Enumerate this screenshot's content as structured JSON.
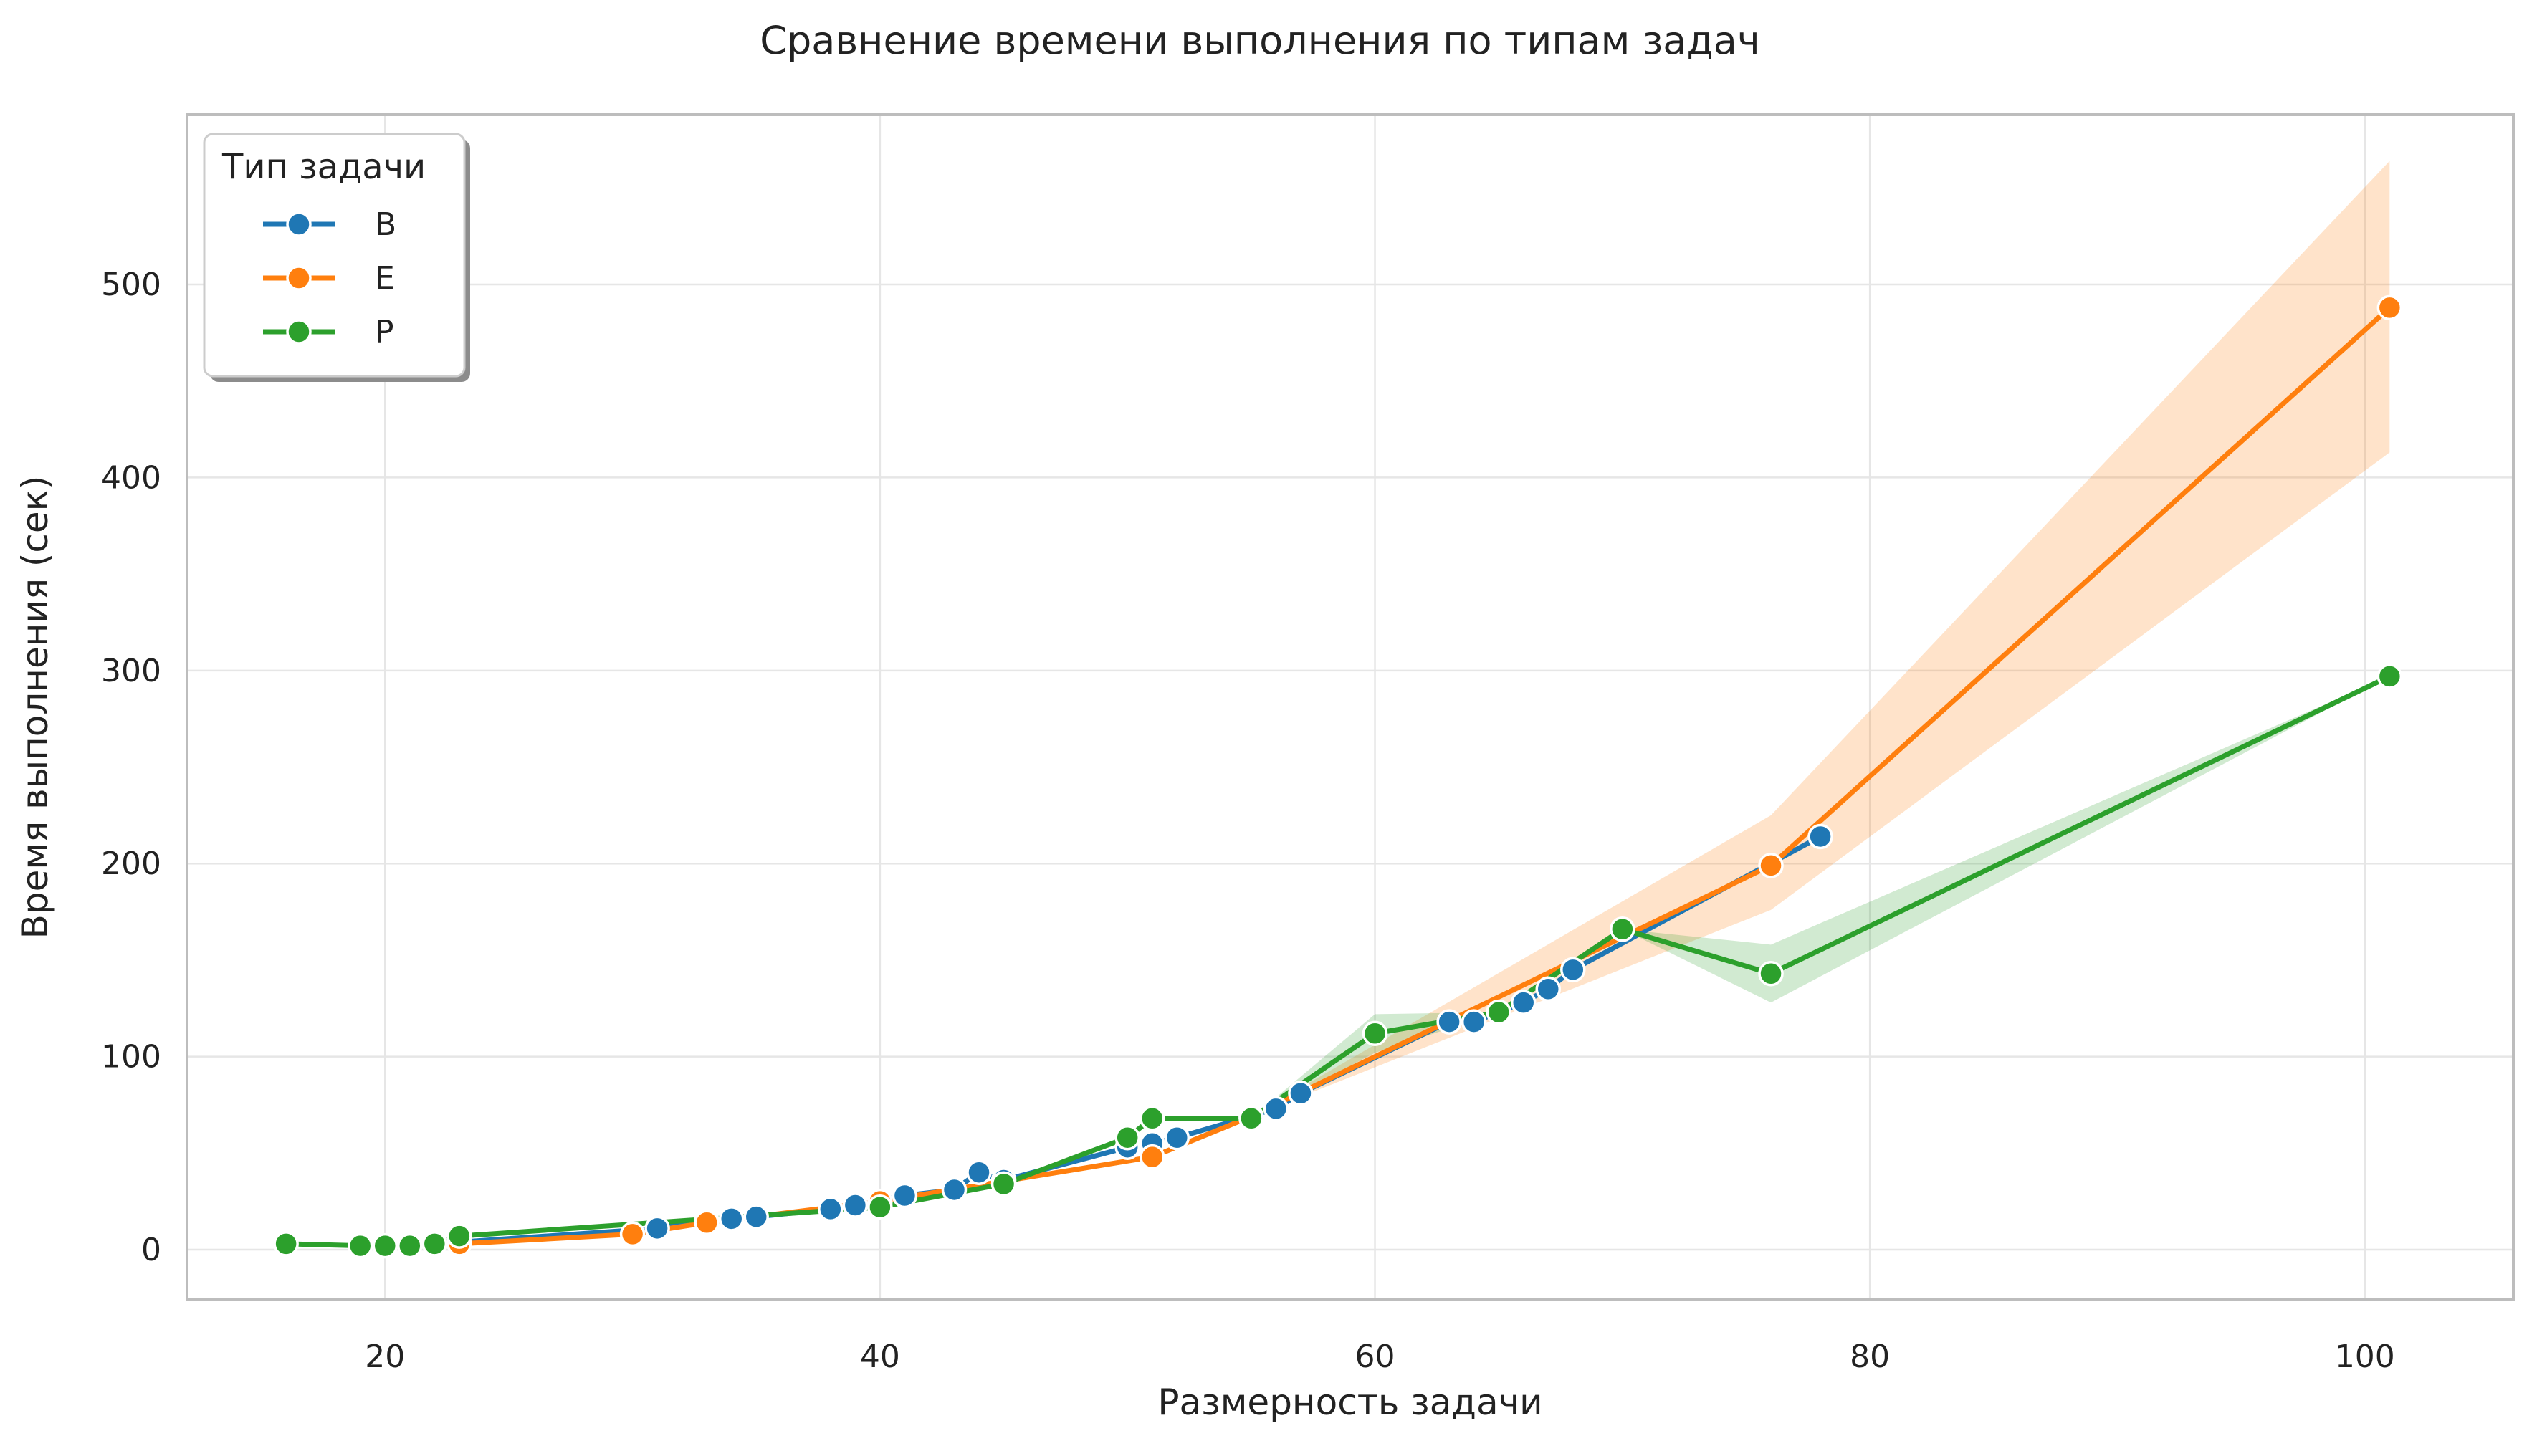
{
  "chart_data": {
    "type": "line",
    "title": "Сравнение времени выполнения по типам задач",
    "xlabel": "Размерность задачи",
    "ylabel": "Время выполнения (сек)",
    "xlim": [
      12,
      106
    ],
    "ylim": [
      -26,
      588
    ],
    "xticks": [
      20,
      40,
      60,
      80,
      100
    ],
    "yticks": [
      0,
      100,
      200,
      300,
      400,
      500
    ],
    "grid": true,
    "legend": {
      "title": "Тип задачи",
      "placement": "top-left"
    },
    "series": [
      {
        "name": "B",
        "color": "#1f77b4",
        "points": [
          [
            22,
            3
          ],
          [
            31,
            11
          ],
          [
            33,
            15
          ],
          [
            34,
            16
          ],
          [
            35,
            17
          ],
          [
            38,
            21
          ],
          [
            39,
            23
          ],
          [
            41,
            28
          ],
          [
            43,
            31
          ],
          [
            44,
            40
          ],
          [
            45,
            36
          ],
          [
            50,
            53
          ],
          [
            51,
            55
          ],
          [
            52,
            58
          ],
          [
            56,
            73
          ],
          [
            57,
            81
          ],
          [
            63,
            118
          ],
          [
            64,
            118
          ],
          [
            65,
            123
          ],
          [
            66,
            128
          ],
          [
            67,
            135
          ],
          [
            68,
            145
          ],
          [
            78,
            214
          ]
        ],
        "ci": []
      },
      {
        "name": "E",
        "color": "#ff7f0e",
        "points": [
          [
            22,
            4
          ],
          [
            23,
            3
          ],
          [
            30,
            8
          ],
          [
            33,
            14
          ],
          [
            40,
            25
          ],
          [
            51,
            48
          ],
          [
            55,
            69
          ],
          [
            76,
            199
          ],
          [
            101,
            488
          ]
        ],
        "ci": [
          [
            76,
            176,
            225
          ],
          [
            101,
            413,
            564
          ]
        ]
      },
      {
        "name": "P",
        "color": "#2ca02c",
        "points": [
          [
            16,
            3
          ],
          [
            19,
            2
          ],
          [
            20,
            2
          ],
          [
            21,
            2
          ],
          [
            22,
            3
          ],
          [
            23,
            7
          ],
          [
            40,
            22
          ],
          [
            45,
            34
          ],
          [
            50,
            58
          ],
          [
            51,
            68
          ],
          [
            55,
            68
          ],
          [
            60,
            112
          ],
          [
            65,
            123
          ],
          [
            70,
            166
          ],
          [
            76,
            143
          ],
          [
            101,
            297
          ]
        ],
        "ci": [
          [
            55,
            68,
            68
          ],
          [
            60,
            102,
            122
          ],
          [
            65,
            123,
            123
          ],
          [
            76,
            128,
            158
          ]
        ]
      }
    ]
  }
}
